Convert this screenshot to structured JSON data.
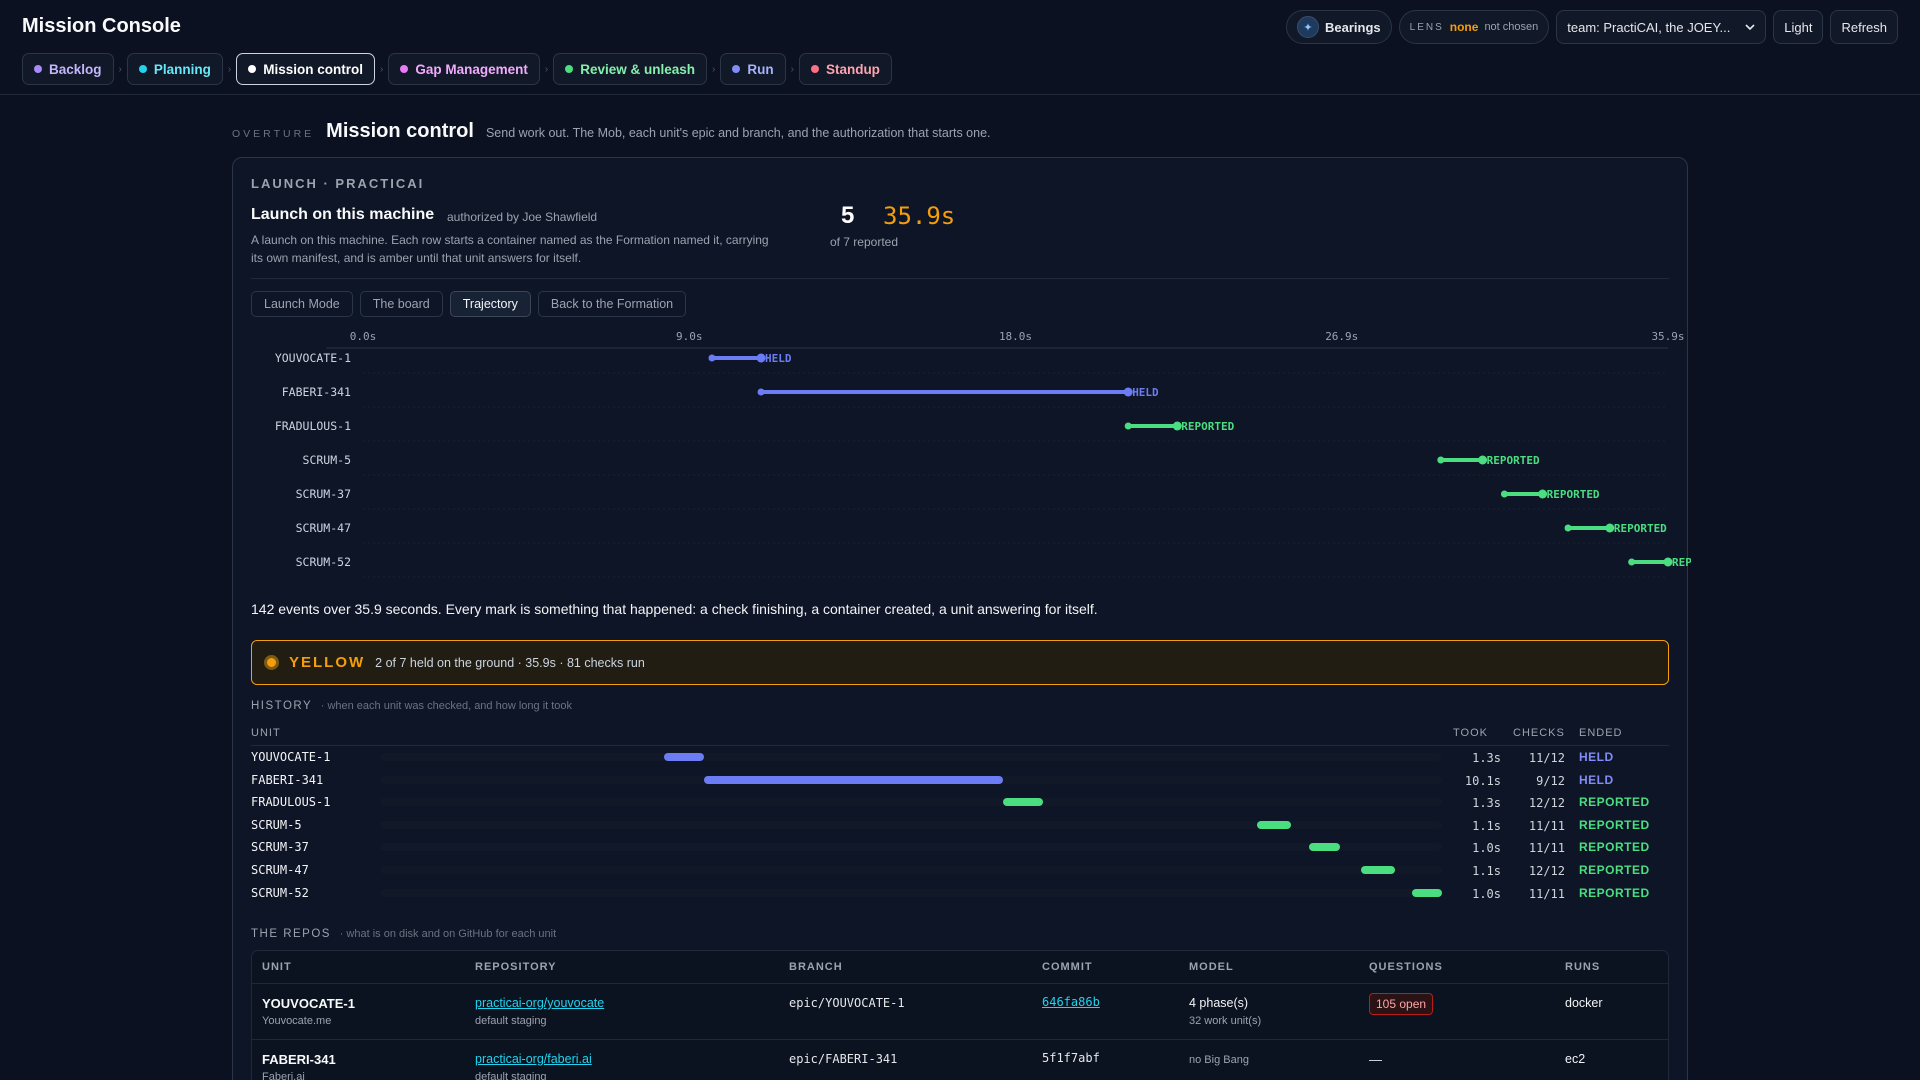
{
  "app": {
    "title": "Mission Console"
  },
  "stages": [
    {
      "label": "Backlog",
      "color": "#a78bfa",
      "text_color": "#c4b5fd",
      "active": false
    },
    {
      "label": "Planning",
      "color": "#22d3ee",
      "text_color": "#67e8f9",
      "active": false
    },
    {
      "label": "Mission control",
      "color": "#ffffff",
      "text_color": "#ffffff",
      "active": true
    },
    {
      "label": "Gap Management",
      "color": "#e879f9",
      "text_color": "#f0abfc",
      "active": false
    },
    {
      "label": "Review & unleash",
      "color": "#4ade80",
      "text_color": "#86efac",
      "active": false
    },
    {
      "label": "Run",
      "color": "#818cf8",
      "text_color": "#a5b4fc",
      "active": false
    },
    {
      "label": "Standup",
      "color": "#fb7185",
      "text_color": "#fda4af",
      "active": false
    }
  ],
  "toolbar": {
    "bearings_label": "Bearings",
    "lens_key": "LENS",
    "lens_value": "none",
    "lens_note": "not chosen",
    "team_select": "team: PractiCAI, the JOEY...",
    "theme_label": "Light",
    "refresh_label": "Refresh"
  },
  "overture": {
    "kicker": "OVERTURE",
    "title": "Mission control",
    "description": "Send work out. The Mob, each unit's epic and branch, and the authorization that starts one."
  },
  "launch": {
    "kicker": "LAUNCH · PRACTICAI",
    "title": "Launch on this machine",
    "authorized": "authorized by Joe Shawfield",
    "description": "A launch on this machine. Each row starts a container named as the Formation named it, carrying its own manifest, and is amber until that unit answers for itself.",
    "reported_count": "5",
    "reported_of": "of 7 reported",
    "elapsed": "35.9s"
  },
  "tabs": [
    {
      "label": "Launch Mode",
      "active": false
    },
    {
      "label": "The board",
      "active": false
    },
    {
      "label": "Trajectory",
      "active": true
    },
    {
      "label": "Back to the Formation",
      "active": false
    }
  ],
  "chart_data": {
    "type": "timeline",
    "x_ticks": [
      "0.0s",
      "9.0s",
      "18.0s",
      "26.9s",
      "35.9s"
    ],
    "xlim": [
      0,
      35.9
    ],
    "rows": [
      {
        "unit": "YOUVOCATE-1",
        "start": 9.6,
        "end": 10.95,
        "status": "HELD"
      },
      {
        "unit": "FABERI-341",
        "start": 10.95,
        "end": 21.05,
        "status": "HELD"
      },
      {
        "unit": "FRADULOUS-1",
        "start": 21.05,
        "end": 22.4,
        "status": "REPORTED"
      },
      {
        "unit": "SCRUM-5",
        "start": 29.65,
        "end": 30.8,
        "status": "REPORTED"
      },
      {
        "unit": "SCRUM-37",
        "start": 31.4,
        "end": 32.45,
        "status": "REPORTED"
      },
      {
        "unit": "SCRUM-47",
        "start": 33.15,
        "end": 34.3,
        "status": "REPORTED"
      },
      {
        "unit": "SCRUM-52",
        "start": 34.9,
        "end": 35.9,
        "status": "REPORTED"
      }
    ],
    "status_colors": {
      "HELD": "#6b7cf5",
      "REPORTED": "#4ade80"
    }
  },
  "trajectory_caption": "142 events over 35.9 seconds. Every mark is something that happened: a check finishing, a container created, a unit answering for itself.",
  "banner": {
    "state": "YELLOW",
    "detail": "2 of 7 held on the ground · 35.9s · 81 checks run",
    "color": "#f59e0b"
  },
  "history": {
    "kicker": "HISTORY",
    "hint": "when each unit was checked, and how long it took",
    "headers": {
      "unit": "UNIT",
      "took": "TOOK",
      "checks": "CHECKS",
      "ended": "ENDED"
    },
    "rows": [
      {
        "unit": "YOUVOCATE-1",
        "took": "1.3s",
        "checks": "11/12",
        "ended": "HELD"
      },
      {
        "unit": "FABERI-341",
        "took": "10.1s",
        "checks": "9/12",
        "ended": "HELD"
      },
      {
        "unit": "FRADULOUS-1",
        "took": "1.3s",
        "checks": "12/12",
        "ended": "REPORTED"
      },
      {
        "unit": "SCRUM-5",
        "took": "1.1s",
        "checks": "11/11",
        "ended": "REPORTED"
      },
      {
        "unit": "SCRUM-37",
        "took": "1.0s",
        "checks": "11/11",
        "ended": "REPORTED"
      },
      {
        "unit": "SCRUM-47",
        "took": "1.1s",
        "checks": "12/12",
        "ended": "REPORTED"
      },
      {
        "unit": "SCRUM-52",
        "took": "1.0s",
        "checks": "11/11",
        "ended": "REPORTED"
      }
    ]
  },
  "repos": {
    "kicker": "THE REPOS",
    "hint": "what is on disk and on GitHub for each unit",
    "headers": {
      "unit": "UNIT",
      "repository": "REPOSITORY",
      "branch": "BRANCH",
      "commit": "COMMIT",
      "model": "MODEL",
      "questions": "QUESTIONS",
      "runs": "RUNS"
    },
    "rows": [
      {
        "unit": "YOUVOCATE-1",
        "unit_sub": "Youvocate.me",
        "repository": "practicai-org/youvocate",
        "repo_sub": "default staging",
        "branch": "epic/YOUVOCATE-1",
        "commit": "646fa86b",
        "commit_link": true,
        "model": "4 phase(s)",
        "model_sub": "32 work unit(s)",
        "questions": "105 open",
        "questions_badge": true,
        "runs": "docker"
      },
      {
        "unit": "FABERI-341",
        "unit_sub": "Faberi.ai",
        "repository": "practicai-org/faberi.ai",
        "repo_sub": "default staging",
        "branch": "epic/FABERI-341",
        "commit": "5f1f7abf",
        "commit_link": false,
        "model": "",
        "model_sub": "no Big Bang",
        "questions": "—",
        "questions_badge": false,
        "runs": "ec2"
      }
    ]
  }
}
